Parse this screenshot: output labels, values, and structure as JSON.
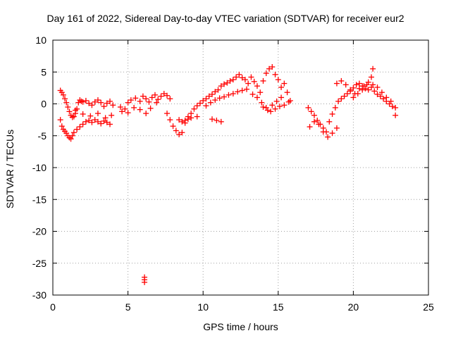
{
  "chart_data": {
    "type": "scatter",
    "title": "Day 161 of 2022, Sidereal Day-to-day VTEC variation (SDTVAR) for receiver eur2",
    "xlabel": "GPS time / hours",
    "ylabel": "SDTVAR / TECUs",
    "xlim": [
      0,
      25
    ],
    "ylim": [
      -30,
      10
    ],
    "xticks": [
      0,
      5,
      10,
      15,
      20,
      25
    ],
    "yticks": [
      10,
      5,
      0,
      -5,
      -10,
      -15,
      -20,
      -25,
      -30
    ],
    "grid": true,
    "marker": "+",
    "series_color": "#ff0000",
    "series": [
      {
        "name": "SDTVAR",
        "x": [
          0.5,
          0.6,
          0.7,
          0.8,
          0.9,
          1.0,
          1.1,
          1.2,
          1.3,
          1.4,
          1.5,
          1.6,
          1.7,
          1.8,
          1.9,
          2.0,
          2.2,
          2.4,
          2.6,
          2.8,
          3.0,
          3.2,
          3.4,
          3.6,
          3.8,
          4.0,
          0.5,
          0.6,
          0.7,
          0.8,
          0.9,
          1.0,
          1.1,
          1.2,
          1.3,
          1.4,
          1.6,
          1.8,
          2.0,
          2.2,
          2.4,
          2.6,
          2.8,
          3.0,
          3.2,
          3.4,
          3.6,
          3.8,
          1.5,
          2.0,
          2.5,
          3.0,
          3.5,
          3.9,
          4.5,
          4.8,
          5.0,
          5.2,
          5.5,
          5.8,
          6.0,
          6.2,
          6.4,
          6.6,
          6.8,
          7.0,
          7.2,
          7.4,
          7.6,
          7.8,
          4.6,
          5.0,
          5.4,
          5.8,
          6.2,
          6.5,
          6.9,
          7.6,
          7.8,
          8.0,
          8.2,
          8.4,
          8.6,
          8.8,
          9.0,
          9.2,
          9.4,
          9.6,
          9.8,
          8.4,
          8.6,
          8.8,
          9.0,
          9.2,
          9.6,
          10.0,
          10.2,
          10.4,
          10.6,
          10.8,
          11.0,
          11.2,
          11.4,
          11.6,
          11.8,
          12.0,
          12.2,
          12.4,
          12.6,
          12.8,
          13.0,
          10.2,
          10.5,
          10.8,
          11.1,
          11.4,
          11.7,
          12.0,
          12.3,
          12.6,
          12.9,
          10.6,
          10.9,
          11.2,
          13.2,
          13.4,
          13.6,
          13.8,
          14.0,
          14.2,
          14.4,
          14.6,
          14.8,
          15.0,
          15.2,
          15.4,
          15.6,
          15.8,
          13.3,
          13.6,
          13.9,
          14.2,
          14.5,
          14.8,
          15.1,
          15.4,
          15.7,
          14.0,
          14.3,
          14.6,
          14.9,
          15.2,
          6.1,
          6.1,
          6.1,
          17.0,
          17.2,
          17.4,
          17.6,
          17.8,
          18.0,
          18.2,
          18.4,
          18.6,
          18.8,
          19.0,
          19.2,
          19.4,
          19.6,
          19.8,
          20.0,
          20.2,
          20.4,
          20.6,
          20.8,
          21.0,
          21.2,
          21.4,
          21.6,
          21.8,
          22.0,
          22.2,
          22.4,
          22.6,
          22.8,
          17.1,
          17.4,
          17.7,
          18.0,
          18.3,
          18.6,
          18.9,
          18.9,
          19.2,
          19.5,
          19.8,
          20.1,
          20.4,
          20.7,
          21.0,
          21.3,
          21.6,
          21.9,
          22.2,
          22.5,
          22.8,
          20.0,
          20.3,
          20.6,
          20.9,
          21.2,
          21.3
        ],
        "y": [
          2.1,
          1.8,
          1.4,
          0.8,
          0.2,
          -0.5,
          -1.2,
          -1.8,
          -2.1,
          -2.0,
          -1.5,
          -0.8,
          0.2,
          0.6,
          0.4,
          0.3,
          0.5,
          0.1,
          -0.2,
          0.3,
          0.6,
          0.2,
          -0.4,
          0.1,
          0.4,
          -0.2,
          -2.5,
          -3.5,
          -4.0,
          -4.3,
          -4.6,
          -5.0,
          -5.3,
          -5.5,
          -5.0,
          -4.5,
          -4.0,
          -3.6,
          -3.2,
          -2.8,
          -2.6,
          -2.9,
          -2.5,
          -2.8,
          -3.1,
          -2.7,
          -2.9,
          -3.2,
          -1.0,
          -1.6,
          -1.9,
          -1.5,
          -2.2,
          -1.8,
          -0.5,
          -0.8,
          0.2,
          0.6,
          0.9,
          0.4,
          1.2,
          0.8,
          0.3,
          1.0,
          1.4,
          0.7,
          1.2,
          1.6,
          1.3,
          0.8,
          -1.2,
          -1.4,
          -0.6,
          -0.9,
          -1.5,
          -0.7,
          0.2,
          -1.5,
          -2.5,
          -3.5,
          -4.2,
          -4.8,
          -4.5,
          -3.0,
          -2.0,
          -1.5,
          -0.8,
          -0.3,
          0.1,
          -2.5,
          -2.8,
          -2.6,
          -2.4,
          -2.2,
          -2.0,
          0.5,
          0.8,
          1.2,
          1.5,
          1.9,
          2.2,
          2.8,
          3.1,
          3.3,
          3.6,
          3.8,
          4.2,
          4.6,
          4.1,
          3.8,
          3.2,
          -0.3,
          0.2,
          0.6,
          0.9,
          1.1,
          1.4,
          1.6,
          1.9,
          2.1,
          2.3,
          -2.4,
          -2.6,
          -2.8,
          4.2,
          3.5,
          2.8,
          1.8,
          3.6,
          4.8,
          5.5,
          5.8,
          4.6,
          3.8,
          2.6,
          3.2,
          1.8,
          0.5,
          1.5,
          1.0,
          0.2,
          -0.6,
          -1.2,
          -0.8,
          -0.4,
          -0.2,
          0.3,
          -0.5,
          -1.0,
          -0.2,
          0.4,
          1.0,
          -27.2,
          -27.6,
          -28.0,
          -0.6,
          -1.2,
          -1.8,
          -2.6,
          -3.2,
          -3.8,
          -4.4,
          -2.8,
          -1.6,
          -0.6,
          0.4,
          0.8,
          1.2,
          1.6,
          2.0,
          2.5,
          3.0,
          3.2,
          2.8,
          2.4,
          2.2,
          2.6,
          2.0,
          1.5,
          1.2,
          0.8,
          0.4,
          0.0,
          -0.4,
          -0.6,
          -3.6,
          -2.8,
          -3.2,
          -4.4,
          -5.2,
          -4.6,
          -3.8,
          3.2,
          3.6,
          3.0,
          2.2,
          1.6,
          2.4,
          2.8,
          3.4,
          3.0,
          2.6,
          1.8,
          1.0,
          0.4,
          -1.8,
          1.0,
          1.6,
          2.2,
          3.0,
          4.2,
          5.5
        ]
      }
    ]
  }
}
